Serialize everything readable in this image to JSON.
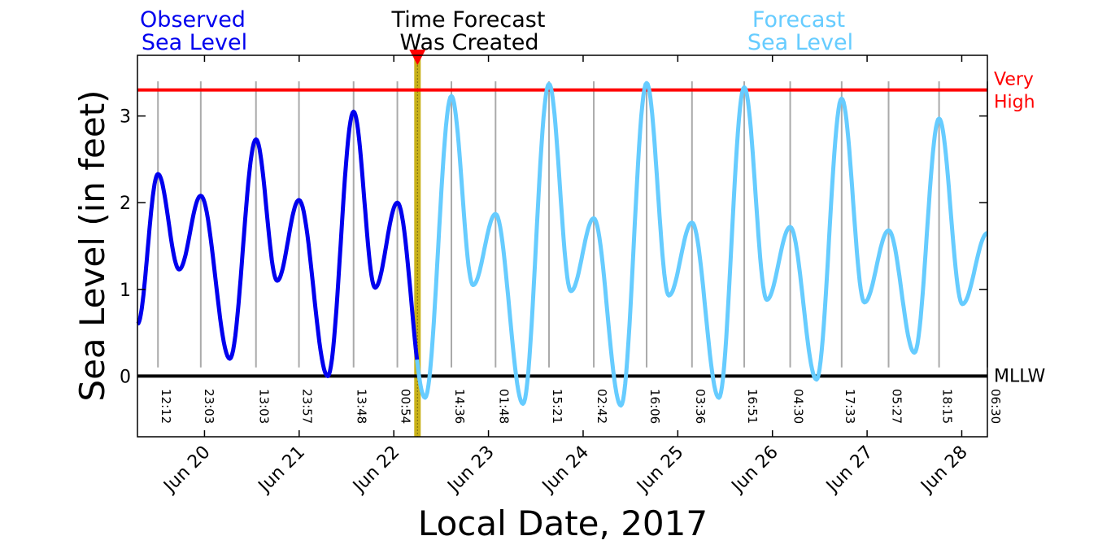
{
  "headers": {
    "observed": [
      "Observed",
      "Sea Level"
    ],
    "created": [
      "Time Forecast",
      "Was Created"
    ],
    "forecast": [
      "Forecast",
      "Sea Level"
    ]
  },
  "colors": {
    "observed": "#0000ee",
    "forecast": "#66ccff",
    "threshold": "#ff0000",
    "mllw": "#000000",
    "created_band": "#c9b21a",
    "created_marker": "#ff0000",
    "tide_lines": "#aaaaaa"
  },
  "chart_data": {
    "type": "line",
    "xlabel": "Local Date, 2017",
    "ylabel": "Sea Level (in feet)",
    "xlim": [
      "Jun 19 07:00",
      "Jun 28 06:30"
    ],
    "ylim": [
      -0.7,
      3.7
    ],
    "yticks": [
      0,
      1,
      2,
      3
    ],
    "date_ticks": [
      "Jun 20",
      "Jun 21",
      "Jun 22",
      "Jun 23",
      "Jun 24",
      "Jun 25",
      "Jun 26",
      "Jun 27",
      "Jun 28"
    ],
    "forecast_created": "Jun 22 06:00",
    "thresholds": [
      {
        "label": [
          "Very",
          "High"
        ],
        "value": 3.3
      },
      {
        "label": [
          "MLLW"
        ],
        "value": 0
      }
    ],
    "tide_times": [
      {
        "label": "12:12",
        "time": "Jun 19 12:12"
      },
      {
        "label": "23:03",
        "time": "Jun 19 23:03"
      },
      {
        "label": "13:03",
        "time": "Jun 20 13:03"
      },
      {
        "label": "23:57",
        "time": "Jun 20 23:57"
      },
      {
        "label": "13:48",
        "time": "Jun 21 13:48"
      },
      {
        "label": "00:54",
        "time": "Jun 22 00:54"
      },
      {
        "label": "14:36",
        "time": "Jun 22 14:36"
      },
      {
        "label": "01:48",
        "time": "Jun 23 01:48"
      },
      {
        "label": "15:21",
        "time": "Jun 23 15:21"
      },
      {
        "label": "02:42",
        "time": "Jun 24 02:42"
      },
      {
        "label": "16:06",
        "time": "Jun 24 16:06"
      },
      {
        "label": "03:36",
        "time": "Jun 25 03:36"
      },
      {
        "label": "16:51",
        "time": "Jun 25 16:51"
      },
      {
        "label": "04:30",
        "time": "Jun 26 04:30"
      },
      {
        "label": "17:33",
        "time": "Jun 26 17:33"
      },
      {
        "label": "05:27",
        "time": "Jun 27 05:27"
      },
      {
        "label": "18:15",
        "time": "Jun 27 18:15"
      },
      {
        "label": "06:30",
        "time": "Jun 28 06:30"
      }
    ],
    "extrema": [
      {
        "time": "Jun 19 07:00",
        "value": 0.6
      },
      {
        "time": "Jun 19 12:12",
        "value": 2.33
      },
      {
        "time": "Jun 19 17:35",
        "value": 1.23
      },
      {
        "time": "Jun 19 23:03",
        "value": 2.08
      },
      {
        "time": "Jun 20 06:25",
        "value": 0.2
      },
      {
        "time": "Jun 20 13:03",
        "value": 2.73
      },
      {
        "time": "Jun 20 18:25",
        "value": 1.1
      },
      {
        "time": "Jun 20 23:57",
        "value": 2.03
      },
      {
        "time": "Jun 21 07:15",
        "value": 0.0
      },
      {
        "time": "Jun 21 13:48",
        "value": 3.05
      },
      {
        "time": "Jun 21 19:15",
        "value": 1.02
      },
      {
        "time": "Jun 22 00:54",
        "value": 2.0
      },
      {
        "time": "Jun 22 07:55",
        "value": -0.25
      },
      {
        "time": "Jun 22 14:36",
        "value": 3.23
      },
      {
        "time": "Jun 22 20:05",
        "value": 1.05
      },
      {
        "time": "Jun 23 01:48",
        "value": 1.87
      },
      {
        "time": "Jun 23 08:45",
        "value": -0.32
      },
      {
        "time": "Jun 23 15:21",
        "value": 3.37
      },
      {
        "time": "Jun 23 20:55",
        "value": 0.98
      },
      {
        "time": "Jun 24 02:42",
        "value": 1.82
      },
      {
        "time": "Jun 24 09:35",
        "value": -0.34
      },
      {
        "time": "Jun 24 16:06",
        "value": 3.38
      },
      {
        "time": "Jun 24 21:45",
        "value": 0.93
      },
      {
        "time": "Jun 25 03:36",
        "value": 1.77
      },
      {
        "time": "Jun 25 10:25",
        "value": -0.25
      },
      {
        "time": "Jun 25 16:51",
        "value": 3.33
      },
      {
        "time": "Jun 25 22:35",
        "value": 0.88
      },
      {
        "time": "Jun 26 04:30",
        "value": 1.72
      },
      {
        "time": "Jun 26 11:10",
        "value": -0.04
      },
      {
        "time": "Jun 26 17:33",
        "value": 3.2
      },
      {
        "time": "Jun 26 23:20",
        "value": 0.85
      },
      {
        "time": "Jun 27 05:27",
        "value": 1.68
      },
      {
        "time": "Jun 27 12:00",
        "value": 0.27
      },
      {
        "time": "Jun 27 18:15",
        "value": 2.97
      },
      {
        "time": "Jun 28 00:10",
        "value": 0.83
      },
      {
        "time": "Jun 28 06:30",
        "value": 1.65
      }
    ]
  }
}
